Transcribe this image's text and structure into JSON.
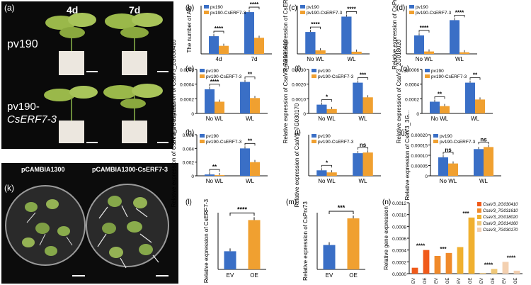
{
  "photo_a": {
    "panel": "(a)",
    "day1": "4d",
    "day2": "7d",
    "row1": "pv190",
    "row2_line1": "pv190-",
    "row2_line2": "CsERF7-3"
  },
  "photo_k": {
    "panel": "(k)",
    "left": "pCAMBIA1300",
    "right": "pCAMBIA1300-CsERF7-3"
  },
  "colors": {
    "blue": "#3a6fc6",
    "orange": "#f0a030",
    "star": "#111111"
  },
  "chart_data": [
    {
      "id": "b",
      "panel": "(b)",
      "type": "bar",
      "categories": [
        "4d",
        "7d"
      ],
      "ylabel": "The number of AR",
      "ylim": [
        0,
        60
      ],
      "yticks": [],
      "legend": [
        "pv190",
        "pv190-CsERF7-3"
      ],
      "series": [
        {
          "name": "pv190",
          "values": [
            22,
            52
          ]
        },
        {
          "name": "pv190-CsERF7-3",
          "values": [
            10,
            20
          ]
        }
      ],
      "sig": [
        "****",
        "****"
      ]
    },
    {
      "id": "c",
      "panel": "(c)",
      "type": "bar",
      "categories": [
        "No WL",
        "WL"
      ],
      "ylabel": "Relative expression of CsERF7-3",
      "ylim": [
        0,
        1.1
      ],
      "yticks": [],
      "legend": [
        "pv190",
        "pv190-CsERF7-3"
      ],
      "series": [
        {
          "name": "pv190",
          "values": [
            0.5,
            0.85
          ]
        },
        {
          "name": "pv190-CsERF7-3",
          "values": [
            0.08,
            0.05
          ]
        }
      ],
      "sig": [
        "****",
        "****"
      ]
    },
    {
      "id": "d",
      "panel": "(d)",
      "type": "bar",
      "categories": [
        "No WL",
        "WL"
      ],
      "ylabel": "Relative expression of CsPrx73",
      "ylim": [
        0,
        0.6
      ],
      "yticks": [],
      "legend": [
        "pv190",
        "pv190-CsERF7-3"
      ],
      "series": [
        {
          "name": "pv190",
          "values": [
            0.23,
            0.42
          ]
        },
        {
          "name": "pv190-CsERF7-3",
          "values": [
            0.03,
            0.02
          ]
        }
      ],
      "sig": [
        "****",
        "****"
      ]
    },
    {
      "id": "e",
      "panel": "(e)",
      "type": "bar",
      "categories": [
        "No WL",
        "WL"
      ],
      "ylabel": "Relative expression of CsaV3_2G030410",
      "ylim": [
        0,
        0.0006
      ],
      "yticks": [
        "0.0006",
        "0.0004",
        "0.0002",
        "0"
      ],
      "legend": [
        "pv190",
        "pv190-CsERF7-3"
      ],
      "series": [
        {
          "name": "pv190",
          "values": [
            0.00033,
            0.00043
          ]
        },
        {
          "name": "pv190-CsERF7-3",
          "values": [
            0.00016,
            0.00021
          ]
        }
      ],
      "sig": [
        "****",
        "**"
      ]
    },
    {
      "id": "f",
      "panel": "(f)",
      "type": "bar",
      "categories": [
        "No WL",
        "WL"
      ],
      "ylabel": "Relative expression of CsaV3_7G031610",
      "ylim": [
        0,
        0.003
      ],
      "yticks": [
        "0.0030",
        "0.0020",
        "0.0010",
        "0"
      ],
      "legend": [
        "pv190",
        "pv190-CsERF7-3"
      ],
      "series": [
        {
          "name": "pv190",
          "values": [
            0.0006,
            0.0021
          ]
        },
        {
          "name": "pv190-CsERF7-3",
          "values": [
            0.0003,
            0.0011
          ]
        }
      ],
      "sig": [
        "*",
        "***"
      ]
    },
    {
      "id": "g",
      "panel": "(g)",
      "type": "bar",
      "categories": [
        "No WL",
        "WL"
      ],
      "ylabel": "Relative expression of CsaV3_2G018020",
      "ylim": [
        0,
        0.0006
      ],
      "yticks": [
        "0.0006",
        "0.0004",
        "0.0002",
        "0"
      ],
      "legend": [
        "pv190",
        "pv190-CsERF7-3"
      ],
      "series": [
        {
          "name": "pv190",
          "values": [
            0.00016,
            0.00042
          ]
        },
        {
          "name": "pv190-CsERF7-3",
          "values": [
            0.0001,
            0.00019
          ]
        }
      ],
      "sig": [
        "**",
        "**"
      ]
    },
    {
      "id": "h",
      "panel": "(h)",
      "type": "bar",
      "categories": [
        "No WL",
        "WL"
      ],
      "ylabel": "Relative expression of CsaV3_2G014160",
      "ylim": [
        0,
        0.006
      ],
      "yticks": [
        "0.006",
        "0.004",
        "0.002",
        "0"
      ],
      "legend": [
        "pv190",
        "pv190-CsERF7-3"
      ],
      "series": [
        {
          "name": "pv190",
          "values": [
            0.0002,
            0.004
          ]
        },
        {
          "name": "pv190-CsERF7-3",
          "values": [
            0.0001,
            0.002
          ]
        }
      ],
      "sig": [
        "**",
        "**"
      ]
    },
    {
      "id": "i",
      "panel": "(i)",
      "type": "bar",
      "categories": [
        "No WL",
        "WL"
      ],
      "ylabel": "Relative expression of CsaV3_7G030170",
      "ylim": [
        0,
        0.006
      ],
      "yticks": [],
      "legend": [
        "pv190",
        "pv190-CsERF7-3"
      ],
      "series": [
        {
          "name": "pv190",
          "values": [
            0.0008,
            0.0033
          ]
        },
        {
          "name": "pv190-CsERF7-3",
          "values": [
            0.0005,
            0.0034
          ]
        }
      ],
      "sig": [
        "*",
        "ns"
      ]
    },
    {
      "id": "j",
      "panel": "(j)",
      "type": "bar",
      "categories": [
        "No WL",
        "WL"
      ],
      "ylabel": "Relative expression of CsaV3_3G...",
      "ylim": [
        0,
        0.0002
      ],
      "yticks": [
        "0.00020",
        "0.00015",
        "0.00010",
        "0.00005",
        "0"
      ],
      "legend": [
        "pv190",
        "pv190-CsERF7-3"
      ],
      "series": [
        {
          "name": "pv190",
          "values": [
            9e-05,
            0.00013
          ]
        },
        {
          "name": "pv190-CsERF7-3",
          "values": [
            6e-05,
            0.00014
          ]
        }
      ],
      "sig": [
        "ns",
        "ns"
      ]
    },
    {
      "id": "l",
      "panel": "(l)",
      "type": "bar",
      "categories": [
        "EV",
        "OE"
      ],
      "ylabel": "Relative expression of CsERF7-3",
      "ylim": [
        0,
        1.0
      ],
      "yticks": [],
      "series": [
        {
          "values": [
            0.32,
            0.87
          ]
        }
      ],
      "sig_pair": "****"
    },
    {
      "id": "m",
      "panel": "(m)",
      "type": "bar",
      "categories": [
        "EV",
        "OE"
      ],
      "ylabel": "Relative expression of CsPrx73",
      "ylim": [
        0,
        1.0
      ],
      "yticks": [],
      "series": [
        {
          "values": [
            0.43,
            0.9
          ]
        }
      ],
      "sig_pair": "***"
    },
    {
      "id": "n",
      "panel": "(n)",
      "type": "bar",
      "categories": [
        "EV",
        "OE",
        "EV",
        "OE",
        "EV",
        "OE",
        "EV",
        "OE",
        "EV",
        "OE"
      ],
      "ylabel": "Relative gene expression",
      "ylim": [
        0,
        0.0012
      ],
      "yticks": [
        "0.0012",
        "0.0010",
        "0.0008",
        "0.0006",
        "0.0004",
        "0.0002",
        "0.0000"
      ],
      "legend": [
        "CsaV3_2G030410",
        "CsaV3_7G031610",
        "CsaV3_2G018020",
        "CsaV3_2G014160",
        "CsaV3_7G030170"
      ],
      "legend_colors": [
        "#f05a1a",
        "#f08a2a",
        "#f0b030",
        "#f0c878",
        "#f3d0b0"
      ],
      "values": [
        0.0001,
        0.0004,
        0.0003,
        0.00035,
        0.00045,
        0.00095,
        1e-05,
        8e-05,
        0.0002,
        5e-05
      ],
      "sig": [
        "****",
        "***",
        "***",
        "****",
        "****"
      ]
    }
  ]
}
